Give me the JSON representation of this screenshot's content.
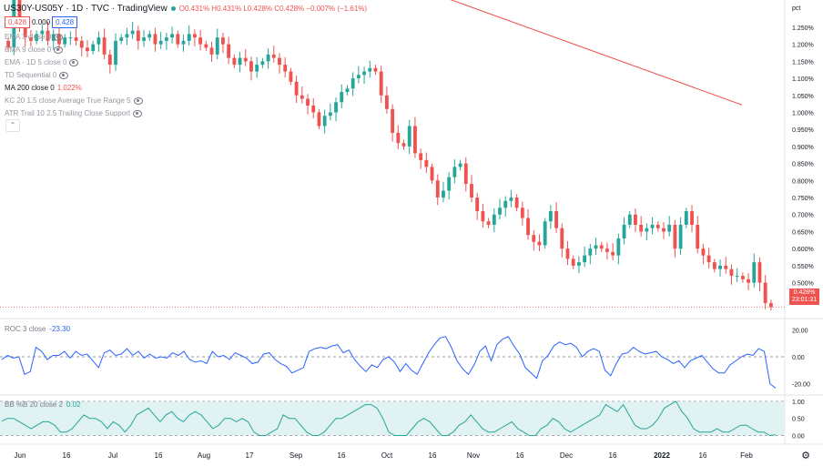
{
  "header": {
    "symbol": "US30Y-US05Y · 1D · TVC · TradingView",
    "ohlc": "O0.431% H0.431% L0.428% C0.428% −0.007% (−1.61%)",
    "price_left": "0.428",
    "spread": "0.000",
    "price_right": "0.428"
  },
  "indicators": [
    {
      "label": "EMA 3 close 0"
    },
    {
      "label": "EMA 9 close 0"
    },
    {
      "label": "EMA - 1D 5 close 0"
    },
    {
      "label": "TD Sequential 0"
    },
    {
      "label": "MA 200 close 0",
      "value": "1.022%"
    },
    {
      "label": "KC 20 1.5 close Average True Range 5"
    },
    {
      "label": "ATR Trail 10 2.5 Trailing Close Support"
    }
  ],
  "collapse_icon": "chevron-up-icon",
  "last_price_tag": {
    "value": "0.428%",
    "countdown": "23:01:31"
  },
  "roc_legend": {
    "name": "ROC 3 close",
    "value": "-23.30"
  },
  "bb_legend": {
    "name": "BB %B 20 close 2",
    "value": "0.02"
  },
  "settings_icon": "gear-icon",
  "colors": {
    "up": "#26a69a",
    "down": "#ef5350",
    "ma": "#ef5350",
    "roc": "#2962ff",
    "bb": "#26a69a",
    "bb_fill": "#e0f2f1"
  },
  "chart_data": [
    {
      "type": "candlestick",
      "title": "US30Y-US05Y · 1D · TVC",
      "ylabel": "pct",
      "ylim": [
        0.4,
        1.33
      ],
      "y_ticks": [
        "1.250%",
        "1.200%",
        "1.150%",
        "1.100%",
        "1.050%",
        "1.000%",
        "0.950%",
        "0.900%",
        "0.850%",
        "0.800%",
        "0.750%",
        "0.700%",
        "0.650%",
        "0.600%",
        "0.550%",
        "0.500%",
        "0.450%"
      ],
      "y_tick_values": [
        1.25,
        1.2,
        1.15,
        1.1,
        1.05,
        1.0,
        0.95,
        0.9,
        0.85,
        0.8,
        0.75,
        0.7,
        0.65,
        0.6,
        0.55,
        0.5,
        0.45
      ],
      "x_labels": [
        "Jun",
        "16",
        "Jul",
        "16",
        "Aug",
        "17",
        "Sep",
        "16",
        "Oct",
        "16",
        "Nov",
        "16",
        "Dec",
        "16",
        "2022",
        "16",
        "Feb"
      ],
      "close": [
        1.19,
        1.33,
        1.25,
        1.22,
        1.21,
        1.23,
        1.24,
        1.21,
        1.23,
        1.2,
        1.22,
        1.22,
        1.21,
        1.19,
        1.18,
        1.2,
        1.22,
        1.17,
        1.14,
        1.21,
        1.22,
        1.23,
        1.24,
        1.21,
        1.22,
        1.23,
        1.2,
        1.21,
        1.22,
        1.23,
        1.2,
        1.21,
        1.23,
        1.22,
        1.2,
        1.19,
        1.17,
        1.22,
        1.2,
        1.16,
        1.14,
        1.16,
        1.15,
        1.12,
        1.14,
        1.15,
        1.17,
        1.16,
        1.14,
        1.12,
        1.09,
        1.05,
        1.04,
        1.02,
        1.0,
        0.96,
        0.99,
        1.0,
        1.03,
        1.06,
        1.07,
        1.1,
        1.11,
        1.12,
        1.13,
        1.12,
        1.05,
        1.01,
        0.94,
        0.91,
        0.9,
        0.96,
        0.88,
        0.86,
        0.84,
        0.8,
        0.75,
        0.77,
        0.81,
        0.84,
        0.85,
        0.79,
        0.75,
        0.71,
        0.68,
        0.67,
        0.7,
        0.72,
        0.74,
        0.75,
        0.72,
        0.69,
        0.64,
        0.62,
        0.61,
        0.68,
        0.71,
        0.66,
        0.6,
        0.57,
        0.55,
        0.56,
        0.58,
        0.6,
        0.61,
        0.6,
        0.59,
        0.58,
        0.63,
        0.67,
        0.7,
        0.67,
        0.65,
        0.66,
        0.67,
        0.66,
        0.65,
        0.67,
        0.6,
        0.67,
        0.71,
        0.67,
        0.6,
        0.58,
        0.56,
        0.54,
        0.55,
        0.54,
        0.52,
        0.52,
        0.51,
        0.5,
        0.56,
        0.5,
        0.44,
        0.428
      ],
      "ma200": {
        "name": "MA 200 close 0",
        "start": 1.36,
        "end": 1.022
      },
      "last": 0.428
    },
    {
      "type": "line",
      "title": "ROC 3 close",
      "ylim": [
        -27,
        27
      ],
      "y_ticks": [
        "20.00",
        "0.00",
        "-20.00"
      ],
      "y_tick_values": [
        20,
        0,
        -20
      ],
      "reference_line": 0,
      "values": [
        -2,
        1,
        -1,
        0,
        -13,
        -11,
        7,
        4,
        -2,
        1,
        1,
        4,
        -1,
        4,
        1,
        2,
        -3,
        -8,
        3,
        5,
        1,
        2,
        6,
        1,
        4,
        -1,
        2,
        -1,
        0,
        -1,
        3,
        1,
        4,
        -2,
        -4,
        -3,
        -5,
        4,
        0,
        1,
        -2,
        3,
        1,
        -1,
        -5,
        -4,
        2,
        3,
        -2,
        -5,
        -7,
        -12,
        -10,
        -8,
        4,
        6,
        7,
        6,
        8,
        9,
        3,
        5,
        -2,
        -7,
        -11,
        -6,
        -8,
        -2,
        0,
        -4,
        -11,
        -5,
        -10,
        -13,
        -5,
        3,
        9,
        14,
        15,
        7,
        -3,
        -9,
        -13,
        -6,
        4,
        8,
        -3,
        9,
        13,
        15,
        8,
        2,
        -8,
        -12,
        -16,
        -3,
        1,
        8,
        11,
        9,
        10,
        7,
        0,
        4,
        6,
        4,
        -10,
        -14,
        -5,
        2,
        3,
        7,
        4,
        2,
        3,
        4,
        0,
        -2,
        -5,
        -3,
        -8,
        -3,
        -1,
        1,
        -4,
        -9,
        -12,
        -12,
        -6,
        -3,
        0,
        2,
        1,
        6,
        4,
        -20,
        -23.3
      ]
    },
    {
      "type": "area",
      "title": "BB %B 20 close 2",
      "ylim": [
        -0.2,
        1.13
      ],
      "y_ticks": [
        "1.00",
        "0.50",
        "0.00"
      ],
      "y_tick_values": [
        1.0,
        0.5,
        0.0
      ],
      "band": [
        0,
        1
      ],
      "values": [
        0.42,
        0.5,
        0.5,
        0.4,
        0.3,
        0.2,
        0.3,
        0.4,
        0.4,
        0.3,
        0.1,
        0.1,
        0.2,
        0.4,
        0.6,
        0.5,
        0.5,
        0.4,
        0.2,
        0.4,
        0.3,
        0.1,
        0.3,
        0.6,
        0.7,
        0.8,
        0.6,
        0.4,
        0.6,
        0.7,
        0.5,
        0.4,
        0.6,
        0.7,
        0.6,
        0.4,
        0.2,
        0.3,
        0.5,
        0.5,
        0.4,
        0.5,
        0.4,
        0.1,
        0.0,
        0.0,
        0.1,
        0.2,
        0.6,
        0.5,
        0.5,
        0.3,
        0.1,
        0.0,
        0.0,
        0.1,
        0.3,
        0.5,
        0.5,
        0.6,
        0.7,
        0.8,
        0.9,
        0.9,
        0.8,
        0.5,
        0.1,
        0.0,
        0.0,
        0.0,
        0.2,
        0.4,
        0.5,
        0.4,
        0.2,
        0.0,
        0.0,
        0.1,
        0.3,
        0.4,
        0.6,
        0.4,
        0.2,
        0.1,
        0.1,
        0.2,
        0.3,
        0.4,
        0.2,
        0.1,
        0.0,
        0.0,
        0.2,
        0.3,
        0.5,
        0.4,
        0.2,
        0.1,
        0.2,
        0.3,
        0.4,
        0.5,
        0.6,
        0.9,
        0.8,
        0.7,
        0.9,
        0.6,
        0.3,
        0.2,
        0.2,
        0.3,
        0.5,
        0.8,
        0.9,
        1.0,
        0.7,
        0.5,
        0.2,
        0.1,
        0.1,
        0.1,
        0.2,
        0.1,
        0.1,
        0.2,
        0.3,
        0.3,
        0.2,
        0.1,
        0.1,
        0.0,
        0.02
      ]
    }
  ]
}
